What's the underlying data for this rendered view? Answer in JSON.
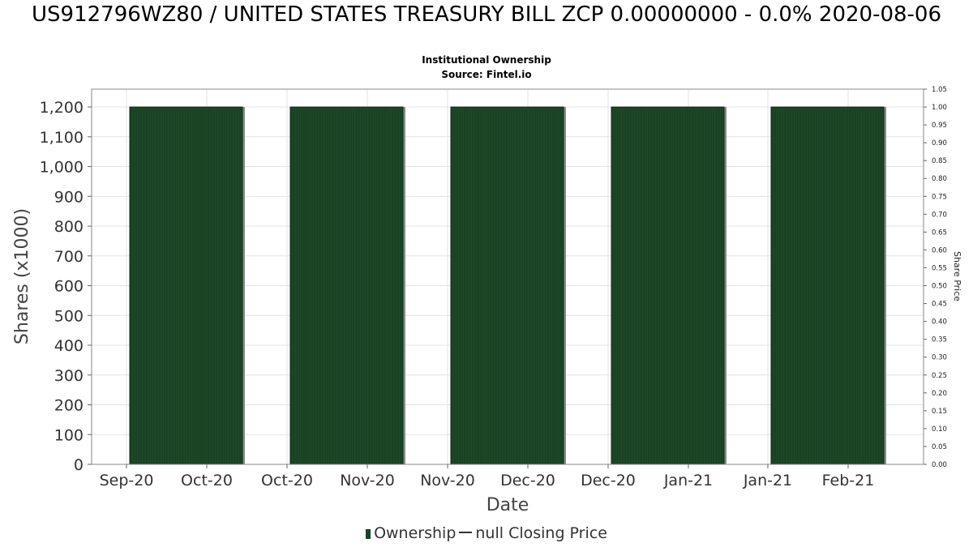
{
  "chart_data": {
    "type": "bar",
    "title": "US912796WZ80 / UNITED STATES TREASURY BILL ZCP 0.00000000 - 0.0% 2020-08-06",
    "subtitle_line1": "Institutional Ownership",
    "subtitle_line2": "Source: Fintel.io",
    "xlabel": "Date",
    "ylabel": "Shares (x1000)",
    "y2label": "Share Price",
    "x_tick_labels": [
      "Sep-20",
      "Oct-20",
      "Oct-20",
      "Nov-20",
      "Nov-20",
      "Dec-20",
      "Dec-20",
      "Jan-21",
      "Jan-21",
      "Feb-21"
    ],
    "y_ticks": [
      "0",
      "100",
      "200",
      "300",
      "400",
      "500",
      "600",
      "700",
      "800",
      "900",
      "1,000",
      "1,100",
      "1,200"
    ],
    "y2_ticks": [
      "0.00",
      "0.05",
      "0.10",
      "0.15",
      "0.20",
      "0.25",
      "0.30",
      "0.35",
      "0.40",
      "0.45",
      "0.50",
      "0.55",
      "0.60",
      "0.65",
      "0.70",
      "0.75",
      "0.80",
      "0.85",
      "0.90",
      "0.95",
      "1.00",
      "1.05"
    ],
    "ylim": [
      0,
      1260
    ],
    "y2lim": [
      0,
      1.05
    ],
    "grid": true,
    "series": [
      {
        "name": "Ownership",
        "color": "#1a4224",
        "bars": [
          {
            "start": "Sep-20",
            "end": "Oct-20",
            "value": 1200
          },
          {
            "start": "Oct-20",
            "end": "Nov-20",
            "value": 1200
          },
          {
            "start": "Nov-20",
            "end": "Dec-20",
            "value": 1200
          },
          {
            "start": "Dec-20",
            "end": "Jan-21",
            "value": 1200
          },
          {
            "start": "Jan-21",
            "end": "Feb-21",
            "value": 1200
          }
        ]
      },
      {
        "name": "null Closing Price",
        "color": "#333333",
        "values": []
      }
    ],
    "legend": {
      "position": "bottom",
      "items": [
        "Ownership",
        "null Closing Price"
      ]
    }
  }
}
